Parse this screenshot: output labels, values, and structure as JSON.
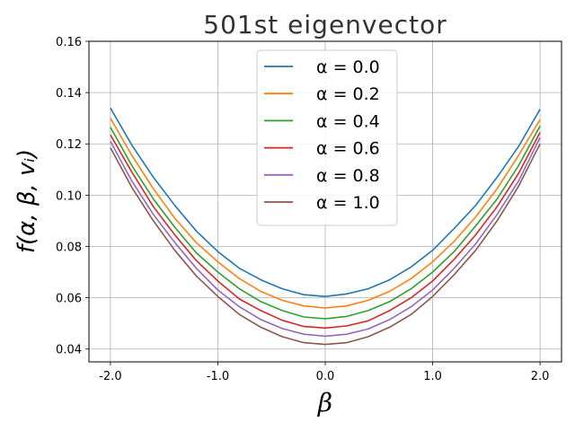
{
  "chart_data": {
    "type": "line",
    "title": "501st eigenvector",
    "xlabel": "β",
    "ylabel": "f(α, β, vᵢ)",
    "xlim": [
      -2.2,
      2.2
    ],
    "ylim": [
      0.035,
      0.16
    ],
    "xticks": [
      -2.0,
      -1.0,
      0.0,
      1.0,
      2.0
    ],
    "xtick_labels": [
      "-2.0",
      "-1.0",
      "0.0",
      "1.0",
      "2.0"
    ],
    "yticks": [
      0.04,
      0.06,
      0.08,
      0.1,
      0.12,
      0.14,
      0.16
    ],
    "ytick_labels": [
      "0.04",
      "0.06",
      "0.08",
      "0.10",
      "0.12",
      "0.14",
      "0.16"
    ],
    "grid": true,
    "legend_position": "upper-center",
    "x": [
      -2.0,
      -1.8,
      -1.6,
      -1.4,
      -1.2,
      -1.0,
      -0.8,
      -0.6,
      -0.4,
      -0.2,
      0.0,
      0.2,
      0.4,
      0.6,
      0.8,
      1.0,
      1.2,
      1.4,
      1.6,
      1.8,
      2.0
    ],
    "series": [
      {
        "name": "α = 0.0",
        "color": "#1f77b4",
        "values": [
          0.134,
          0.1195,
          0.107,
          0.096,
          0.086,
          0.078,
          0.0715,
          0.067,
          0.0635,
          0.0612,
          0.0605,
          0.0615,
          0.0635,
          0.067,
          0.072,
          0.0785,
          0.087,
          0.096,
          0.107,
          0.119,
          0.1335
        ]
      },
      {
        "name": "α = 0.2",
        "color": "#ff7f0e",
        "values": [
          0.13,
          0.1155,
          0.1025,
          0.091,
          0.0815,
          0.074,
          0.0675,
          0.0625,
          0.059,
          0.0568,
          0.056,
          0.0568,
          0.059,
          0.0625,
          0.0675,
          0.074,
          0.082,
          0.0915,
          0.1025,
          0.1155,
          0.1295
        ]
      },
      {
        "name": "α = 0.4",
        "color": "#2ca02c",
        "values": [
          0.1265,
          0.1115,
          0.0985,
          0.0875,
          0.0775,
          0.07,
          0.0635,
          0.0585,
          0.055,
          0.0525,
          0.0518,
          0.0527,
          0.055,
          0.0585,
          0.0635,
          0.07,
          0.078,
          0.088,
          0.0985,
          0.1115,
          0.127
        ]
      },
      {
        "name": "α = 0.6",
        "color": "#d62728",
        "values": [
          0.1235,
          0.109,
          0.0955,
          0.0845,
          0.0745,
          0.0665,
          0.0595,
          0.055,
          0.0512,
          0.0488,
          0.0482,
          0.049,
          0.051,
          0.055,
          0.06,
          0.0665,
          0.075,
          0.0845,
          0.0955,
          0.1085,
          0.1245
        ]
      },
      {
        "name": "α = 0.8",
        "color": "#9467bd",
        "values": [
          0.121,
          0.1055,
          0.0925,
          0.0815,
          0.0715,
          0.063,
          0.0565,
          0.0515,
          0.048,
          0.0458,
          0.045,
          0.0458,
          0.0478,
          0.0515,
          0.0565,
          0.063,
          0.0715,
          0.081,
          0.0925,
          0.1055,
          0.1225
        ]
      },
      {
        "name": "α = 1.0",
        "color": "#8c564b",
        "values": [
          0.1185,
          0.103,
          0.09,
          0.0785,
          0.0685,
          0.0605,
          0.0535,
          0.0485,
          0.0448,
          0.0425,
          0.0418,
          0.0425,
          0.0448,
          0.0485,
          0.0535,
          0.0605,
          0.069,
          0.0785,
          0.09,
          0.1035,
          0.12
        ]
      }
    ]
  }
}
